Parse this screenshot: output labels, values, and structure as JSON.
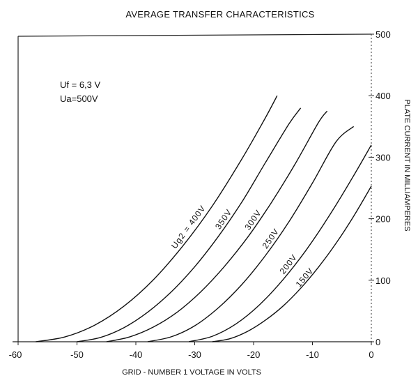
{
  "chart_data": {
    "type": "line",
    "title": "AVERAGE TRANSFER CHARACTERISTICS",
    "xlabel": "GRID - NUMBER 1 VOLTAGE IN VOLTS",
    "ylabel": "PLATE CURRENT IN MILLIAMPERES",
    "xlim": [
      -60,
      0
    ],
    "ylim": [
      0,
      500
    ],
    "x_ticks": [
      -60,
      -50,
      -40,
      -30,
      -20,
      -10,
      0
    ],
    "x_tick_labels": [
      "-60",
      "-50",
      "-40",
      "-30",
      "-20",
      "-10",
      "0"
    ],
    "y_ticks": [
      0,
      100,
      200,
      300,
      400,
      500
    ],
    "y_tick_labels": [
      "0",
      "100",
      "200",
      "300",
      "400",
      "500"
    ],
    "grid": false,
    "notes": [
      "Uf = 6,3 V",
      "Ua=500V"
    ],
    "series": [
      {
        "name": "Ug2 = 400V",
        "x": [
          -57,
          -52,
          -47,
          -42,
          -37,
          -32,
          -27,
          -22,
          -18,
          -16
        ],
        "y": [
          0,
          8,
          27,
          58,
          101,
          156,
          221,
          297,
          364,
          400
        ]
      },
      {
        "name": "350V",
        "x": [
          -50,
          -46,
          -42,
          -38,
          -34,
          -30,
          -26,
          -22,
          -18,
          -14,
          -12
        ],
        "y": [
          0,
          7,
          23,
          48,
          81,
          122,
          171,
          227,
          291,
          354,
          380
        ]
      },
      {
        "name": "300V",
        "x": [
          -45,
          -41,
          -37,
          -33,
          -29,
          -25,
          -21,
          -17,
          -13,
          -9,
          -7.5
        ],
        "y": [
          0,
          8,
          24,
          48,
          81,
          122,
          170,
          226,
          288,
          356,
          375
        ]
      },
      {
        "name": "250V",
        "x": [
          -38,
          -34,
          -30,
          -26,
          -22,
          -18,
          -14,
          -10,
          -6,
          -3
        ],
        "y": [
          0,
          8,
          26,
          55,
          93,
          140,
          195,
          258,
          325,
          350
        ]
      },
      {
        "name": "200V",
        "x": [
          -31,
          -27,
          -23,
          -19,
          -15,
          -11,
          -7,
          -3,
          0
        ],
        "y": [
          0,
          9,
          29,
          60,
          101,
          150,
          207,
          270,
          320
        ]
      },
      {
        "name": "150V",
        "x": [
          -27,
          -24,
          -21,
          -18,
          -15,
          -12,
          -9,
          -6,
          -3,
          0
        ],
        "y": [
          0,
          5,
          17,
          35,
          58,
          87,
          121,
          160,
          204,
          253
        ]
      }
    ]
  }
}
